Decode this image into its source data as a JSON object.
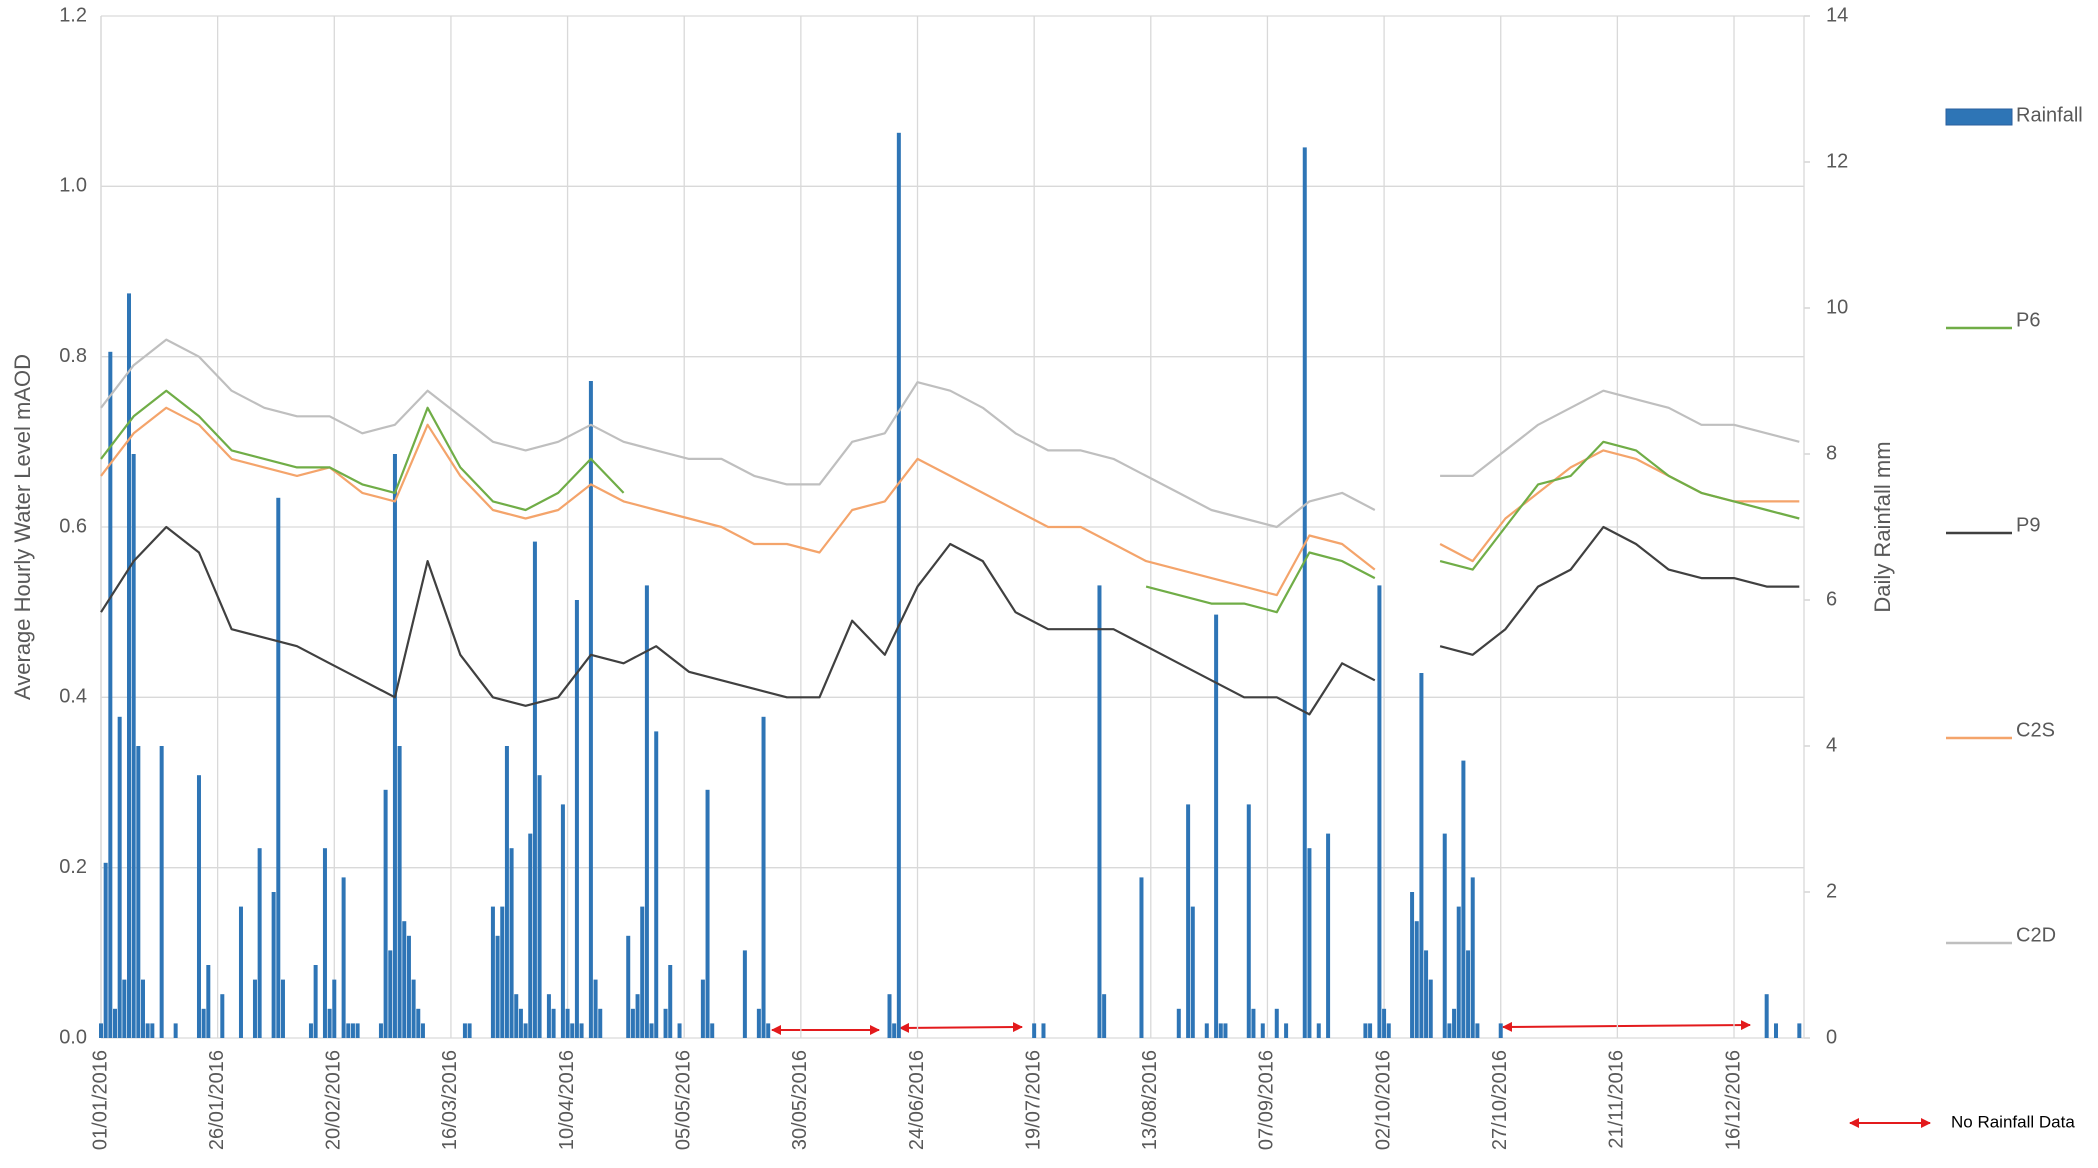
{
  "chart_data": {
    "type": "combo",
    "ylabel": "Average Hourly Water Level mAOD",
    "y2label": "Daily Rainfall mm",
    "annotation": "No Rainfall Data",
    "xlim": [
      "01/01/2016",
      "31/12/2016"
    ],
    "xticks": [
      "01/01/2016",
      "26/01/2016",
      "20/02/2016",
      "16/03/2016",
      "10/04/2016",
      "05/05/2016",
      "30/05/2016",
      "24/06/2016",
      "19/07/2016",
      "13/08/2016",
      "07/09/2016",
      "02/10/2016",
      "27/10/2016",
      "21/11/2016",
      "16/12/2016"
    ],
    "ylim": [
      0,
      1.2
    ],
    "yticks": [
      {
        "value": 0,
        "label": "0.0"
      },
      0.2,
      0.4,
      0.6,
      0.8,
      {
        "value": 1,
        "label": "1.0"
      },
      1.2
    ],
    "y2lim": [
      0,
      14
    ],
    "y2ticks": [
      0,
      2,
      4,
      6,
      8,
      10,
      12,
      14
    ],
    "grid": true,
    "legend": "right",
    "x": [
      "01/01/2016",
      "08/01/2016",
      "15/01/2016",
      "22/01/2016",
      "29/01/2016",
      "05/02/2016",
      "12/02/2016",
      "19/02/2016",
      "26/02/2016",
      "04/03/2016",
      "11/03/2016",
      "18/03/2016",
      "25/03/2016",
      "01/04/2016",
      "08/04/2016",
      "15/04/2016",
      "22/04/2016",
      "29/04/2016",
      "06/05/2016",
      "13/05/2016",
      "20/05/2016",
      "27/05/2016",
      "03/06/2016",
      "10/06/2016",
      "17/06/2016",
      "24/06/2016",
      "01/07/2016",
      "08/07/2016",
      "15/07/2016",
      "22/07/2016",
      "29/07/2016",
      "05/08/2016",
      "12/08/2016",
      "19/08/2016",
      "26/08/2016",
      "02/09/2016",
      "09/09/2016",
      "16/09/2016",
      "23/09/2016",
      "30/09/2016",
      "07/10/2016",
      "14/10/2016",
      "21/10/2016",
      "28/10/2016",
      "04/11/2016",
      "11/11/2016",
      "18/11/2016",
      "25/11/2016",
      "02/12/2016",
      "09/12/2016",
      "16/12/2016",
      "23/12/2016",
      "30/12/2016"
    ],
    "series": [
      {
        "name": "Rainfall",
        "type": "bar",
        "axis": "y2",
        "color": "#2e75b6",
        "x": [
          "01/01/2016",
          "02/01/2016",
          "03/01/2016",
          "04/01/2016",
          "05/01/2016",
          "06/01/2016",
          "07/01/2016",
          "08/01/2016",
          "09/01/2016",
          "10/01/2016",
          "11/01/2016",
          "12/01/2016",
          "14/01/2016",
          "17/01/2016",
          "22/01/2016",
          "23/01/2016",
          "24/01/2016",
          "27/01/2016",
          "31/01/2016",
          "03/02/2016",
          "04/02/2016",
          "07/02/2016",
          "08/02/2016",
          "09/02/2016",
          "15/02/2016",
          "16/02/2016",
          "18/02/2016",
          "19/02/2016",
          "20/02/2016",
          "22/02/2016",
          "23/02/2016",
          "24/02/2016",
          "25/02/2016",
          "01/03/2016",
          "02/03/2016",
          "03/03/2016",
          "04/03/2016",
          "05/03/2016",
          "06/03/2016",
          "07/03/2016",
          "08/03/2016",
          "09/03/2016",
          "10/03/2016",
          "19/03/2016",
          "20/03/2016",
          "25/03/2016",
          "26/03/2016",
          "27/03/2016",
          "28/03/2016",
          "29/03/2016",
          "30/03/2016",
          "31/03/2016",
          "01/04/2016",
          "02/04/2016",
          "03/04/2016",
          "04/04/2016",
          "06/04/2016",
          "07/04/2016",
          "09/04/2016",
          "10/04/2016",
          "11/04/2016",
          "12/04/2016",
          "13/04/2016",
          "15/04/2016",
          "16/04/2016",
          "17/04/2016",
          "23/04/2016",
          "24/04/2016",
          "25/04/2016",
          "26/04/2016",
          "27/04/2016",
          "28/04/2016",
          "29/04/2016",
          "01/05/2016",
          "02/05/2016",
          "04/05/2016",
          "09/05/2016",
          "10/05/2016",
          "11/05/2016",
          "18/05/2016",
          "21/05/2016",
          "22/05/2016",
          "23/05/2016",
          "18/06/2016",
          "19/06/2016",
          "20/06/2016",
          "19/07/2016",
          "21/07/2016",
          "02/08/2016",
          "03/08/2016",
          "11/08/2016",
          "19/08/2016",
          "21/08/2016",
          "22/08/2016",
          "25/08/2016",
          "27/08/2016",
          "28/08/2016",
          "29/08/2016",
          "03/09/2016",
          "04/09/2016",
          "06/09/2016",
          "09/09/2016",
          "11/09/2016",
          "15/09/2016",
          "16/09/2016",
          "18/09/2016",
          "20/09/2016",
          "28/09/2016",
          "29/09/2016",
          "01/10/2016",
          "02/10/2016",
          "03/10/2016",
          "08/10/2016",
          "09/10/2016",
          "10/10/2016",
          "11/10/2016",
          "12/10/2016",
          "15/10/2016",
          "16/10/2016",
          "17/10/2016",
          "18/10/2016",
          "19/10/2016",
          "20/10/2016",
          "21/10/2016",
          "22/10/2016",
          "27/10/2016",
          "23/12/2016",
          "25/12/2016",
          "30/12/2016"
        ],
        "values": [
          0.2,
          2.4,
          9.4,
          0.4,
          4.4,
          0.8,
          10.2,
          8.0,
          4.0,
          0.8,
          0.2,
          0.2,
          4.0,
          0.2,
          3.6,
          0.4,
          1.0,
          0.6,
          1.8,
          0.8,
          2.6,
          2.0,
          7.4,
          0.8,
          0.2,
          1.0,
          2.6,
          0.4,
          0.8,
          2.2,
          0.2,
          0.2,
          0.2,
          0.2,
          3.4,
          1.2,
          8.0,
          4.0,
          1.6,
          1.4,
          0.8,
          0.4,
          0.2,
          0.2,
          0.2,
          1.8,
          1.4,
          1.8,
          4.0,
          2.6,
          0.6,
          0.4,
          0.2,
          2.8,
          6.8,
          3.6,
          0.6,
          0.4,
          3.2,
          0.4,
          0.2,
          6.0,
          0.2,
          9.0,
          0.8,
          0.4,
          1.4,
          0.4,
          0.6,
          1.8,
          6.2,
          0.2,
          4.2,
          0.4,
          1.0,
          0.2,
          0.8,
          3.4,
          0.2,
          1.2,
          0.4,
          4.4,
          0.2,
          0.6,
          0.2,
          12.4,
          0.2,
          0.2,
          6.2,
          0.6,
          2.2,
          0.4,
          3.2,
          1.8,
          0.2,
          5.8,
          0.2,
          0.2,
          3.2,
          0.4,
          0.2,
          0.4,
          0.2,
          12.2,
          2.6,
          0.2,
          2.8,
          0.2,
          0.2,
          6.2,
          0.4,
          0.2,
          2.0,
          1.6,
          5.0,
          1.2,
          0.8,
          2.8,
          0.2,
          0.4,
          1.8,
          3.8,
          1.2,
          2.2,
          0.2,
          0.2,
          0.6,
          0.2,
          0.2
        ]
      },
      {
        "name": "P6",
        "type": "line",
        "color": "#70ad47",
        "values": [
          0.68,
          0.73,
          0.76,
          0.73,
          0.69,
          0.68,
          0.67,
          0.67,
          0.65,
          0.64,
          0.74,
          0.67,
          0.63,
          0.62,
          0.64,
          0.68,
          0.64,
          null,
          null,
          null,
          null,
          null,
          null,
          null,
          null,
          null,
          null,
          null,
          null,
          null,
          null,
          null,
          0.53,
          0.52,
          0.51,
          0.51,
          0.5,
          0.57,
          0.56,
          0.54,
          null,
          0.56,
          0.55,
          0.6,
          0.65,
          0.66,
          0.7,
          0.69,
          0.66,
          0.64,
          0.63,
          0.62,
          0.61
        ]
      },
      {
        "name": "P9",
        "type": "line",
        "color": "#404040",
        "values": [
          0.5,
          0.56,
          0.6,
          0.57,
          0.48,
          0.47,
          0.46,
          0.44,
          0.42,
          0.4,
          0.56,
          0.45,
          0.4,
          0.39,
          0.4,
          0.45,
          0.44,
          0.46,
          0.43,
          0.42,
          0.41,
          0.4,
          0.4,
          0.49,
          0.45,
          0.53,
          0.58,
          0.56,
          0.5,
          0.48,
          0.48,
          0.48,
          0.46,
          0.44,
          0.42,
          0.4,
          0.4,
          0.38,
          0.44,
          0.42,
          null,
          0.46,
          0.45,
          0.48,
          0.53,
          0.55,
          0.6,
          0.58,
          0.55,
          0.54,
          0.54,
          0.53,
          0.53
        ]
      },
      {
        "name": "C2S",
        "type": "line",
        "color": "#f4a46b",
        "values": [
          0.66,
          0.71,
          0.74,
          0.72,
          0.68,
          0.67,
          0.66,
          0.67,
          0.64,
          0.63,
          0.72,
          0.66,
          0.62,
          0.61,
          0.62,
          0.65,
          0.63,
          0.62,
          0.61,
          0.6,
          0.58,
          0.58,
          0.57,
          0.62,
          0.63,
          0.68,
          0.66,
          0.64,
          0.62,
          0.6,
          0.6,
          0.58,
          0.56,
          0.55,
          0.54,
          0.53,
          0.52,
          0.59,
          0.58,
          0.55,
          null,
          0.58,
          0.56,
          0.61,
          0.64,
          0.67,
          0.69,
          0.68,
          0.66,
          0.64,
          0.63,
          0.63,
          0.63
        ]
      },
      {
        "name": "C2D",
        "type": "line",
        "color": "#bfbfbf",
        "values": [
          0.74,
          0.79,
          0.82,
          0.8,
          0.76,
          0.74,
          0.73,
          0.73,
          0.71,
          0.72,
          0.76,
          0.73,
          0.7,
          0.69,
          0.7,
          0.72,
          0.7,
          0.69,
          0.68,
          0.68,
          0.66,
          0.65,
          0.65,
          0.7,
          0.71,
          0.77,
          0.76,
          0.74,
          0.71,
          0.69,
          0.69,
          0.68,
          0.66,
          0.64,
          0.62,
          0.61,
          0.6,
          0.63,
          0.64,
          0.62,
          null,
          0.66,
          0.66,
          0.69,
          0.72,
          0.74,
          0.76,
          0.75,
          0.74,
          0.72,
          0.72,
          0.71,
          0.7
        ]
      }
    ]
  }
}
